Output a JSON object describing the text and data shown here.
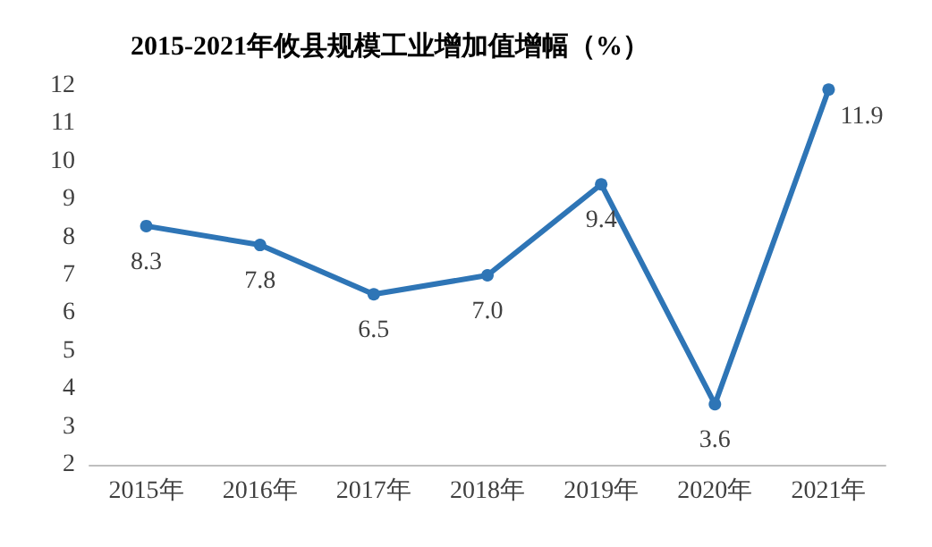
{
  "chart_data": {
    "type": "line",
    "title": "2015-2021年攸县规模工业增加值增幅（%）",
    "categories": [
      "2015年",
      "2016年",
      "2017年",
      "2018年",
      "2019年",
      "2020年",
      "2021年"
    ],
    "series": [
      {
        "color": "#2e75b6",
        "values": [
          8.3,
          7.8,
          6.5,
          7.0,
          9.4,
          3.6,
          11.9
        ],
        "value_labels": [
          "8.3",
          "7.8",
          "6.5",
          "7.0",
          "9.4",
          "3.6",
          "11.9"
        ]
      }
    ],
    "ylim": [
      2,
      12
    ],
    "yticks": [
      2,
      3,
      4,
      5,
      6,
      7,
      8,
      9,
      10,
      11,
      12
    ],
    "grid": false,
    "marker": "circle",
    "line_style": "solid"
  }
}
